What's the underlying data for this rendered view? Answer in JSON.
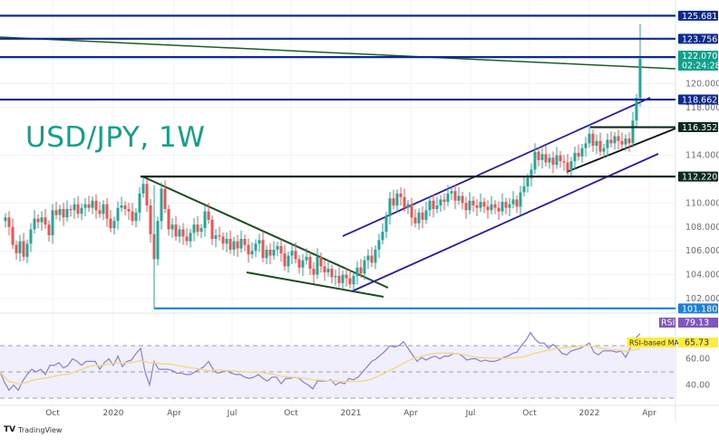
{
  "chart_data": {
    "type": "candlestick",
    "title": "USD/JPY, 1W",
    "symbol": "USD/JPY",
    "timeframe": "1W",
    "price_axis": {
      "ticks": [
        "120.000",
        "118.000",
        "114.000",
        "110.000",
        "108.000",
        "106.000",
        "104.000",
        "102.000"
      ],
      "tick_values": [
        120,
        118,
        114,
        110,
        108,
        106,
        104,
        102
      ]
    },
    "time_axis": {
      "labels": [
        "Oct",
        "2020",
        "Apr",
        "Jul",
        "Oct",
        "2021",
        "Apr",
        "Jul",
        "Oct",
        "2022",
        "Apr"
      ],
      "positions": [
        58,
        125,
        192,
        256,
        321,
        387,
        453,
        519,
        584,
        650,
        716
      ]
    },
    "horizontal_levels": [
      {
        "value": 125.681,
        "label": "125.681",
        "color": "#0d2a8f"
      },
      {
        "value": 123.756,
        "label": "123.756",
        "color": "#0d2a8f"
      },
      {
        "value": 122.22,
        "label": "122.220",
        "color": "#0d2a8f"
      },
      {
        "value": 118.662,
        "label": "118.662",
        "color": "#0d2a8f"
      },
      {
        "value": 116.352,
        "label": "116.352",
        "color": "#0b2b1f"
      },
      {
        "value": 112.22,
        "label": "112.220",
        "color": "#0b2b1f"
      },
      {
        "value": 101.18,
        "label": "101.180",
        "color": "#1e7fd6"
      }
    ],
    "last_price": {
      "value": "122.070",
      "countdown": "02:24:28",
      "color": "#11a08b"
    },
    "rsi": {
      "label": "RSI",
      "value": "79.13",
      "ma_label": "RSI-based MA",
      "ma_value": "65.73",
      "ticks": [
        "60.00",
        "40.00"
      ],
      "upper_band": 70,
      "lower_band": 30
    },
    "colors": {
      "up": "#26a69a",
      "down": "#ef5350",
      "channel": "#2e1a9e",
      "wedge": "#1b5e20",
      "rsi_line": "#8b7dd8",
      "rsi_ma": "#f3d98b",
      "rsi_band_fill": "#f1effb"
    }
  },
  "branding": {
    "logo_mark": "TV",
    "logo_text": "TradingView"
  },
  "badges": {
    "rsi_tag": "RSI"
  }
}
